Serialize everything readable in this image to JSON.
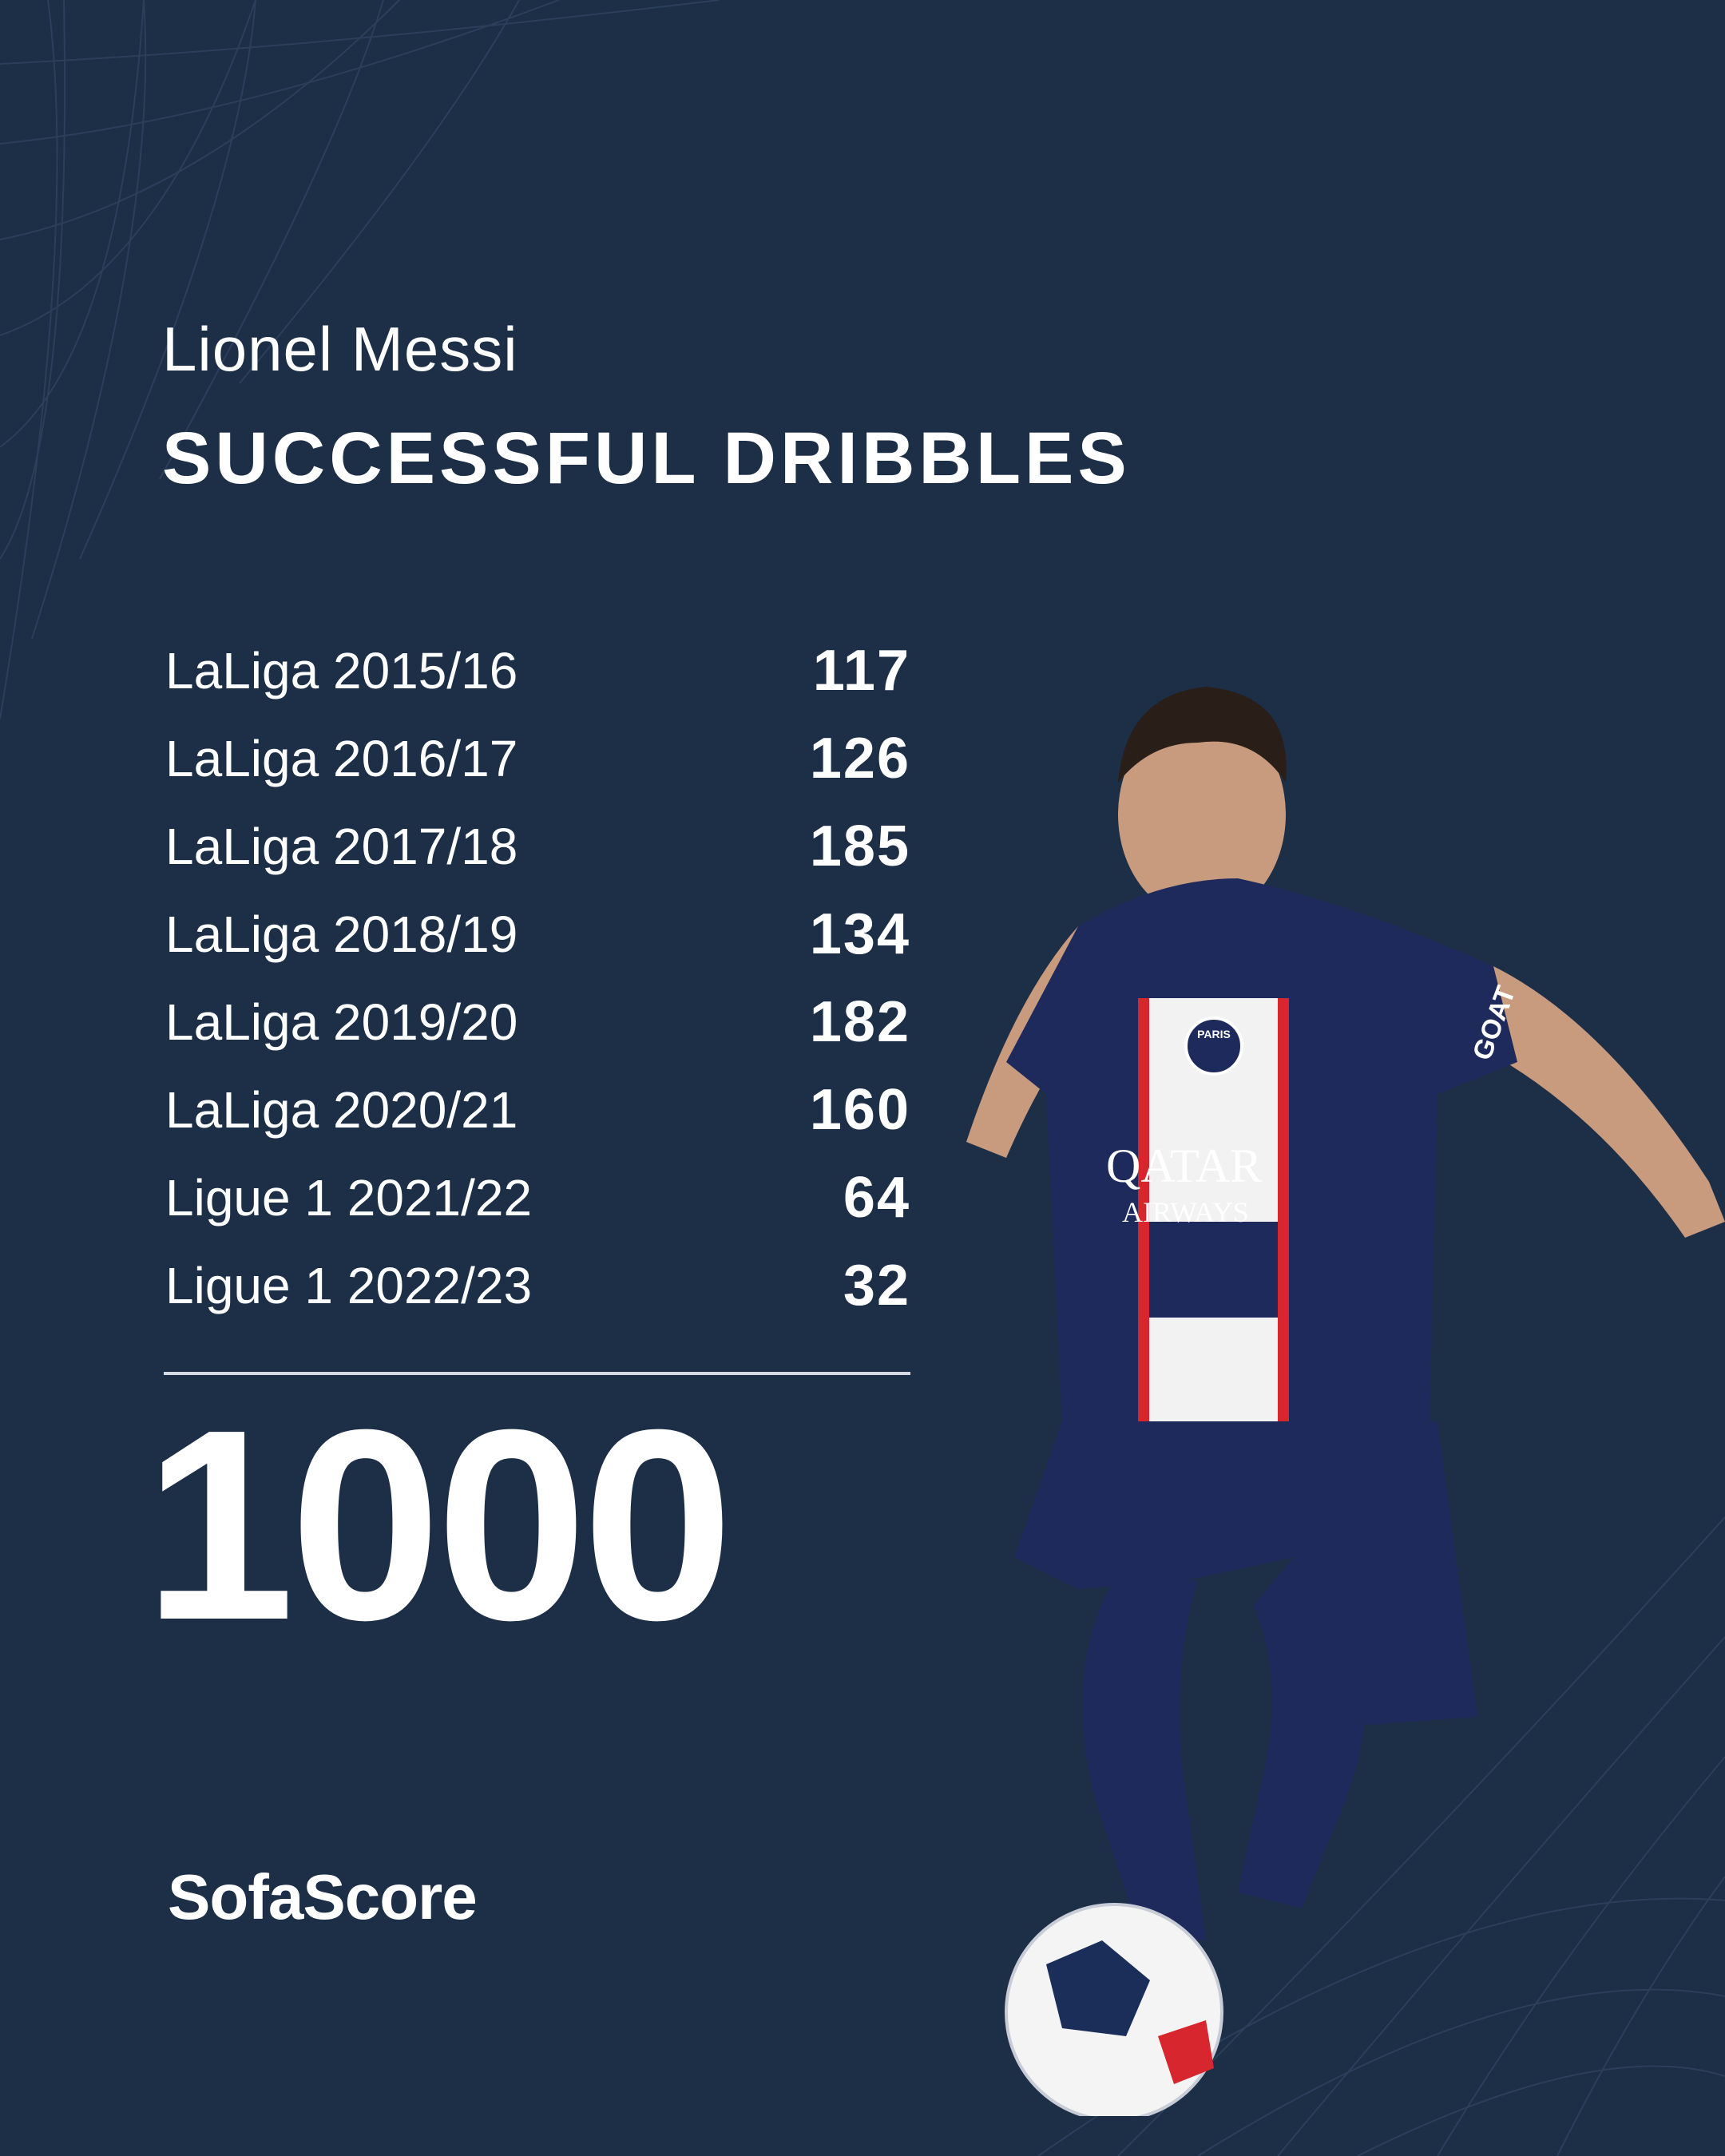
{
  "header": {
    "player_name": "Lionel Messi",
    "title": "SUCCESSFUL DRIBBLES"
  },
  "seasons": [
    {
      "label": "LaLiga 2015/16",
      "value": "117"
    },
    {
      "label": "LaLiga 2016/17",
      "value": "126"
    },
    {
      "label": "LaLiga 2017/18",
      "value": "185"
    },
    {
      "label": "LaLiga 2018/19",
      "value": "134"
    },
    {
      "label": "LaLiga 2019/20",
      "value": "182"
    },
    {
      "label": "LaLiga 2020/21",
      "value": "160"
    },
    {
      "label": "Ligue 1 2021/22",
      "value": "64"
    },
    {
      "label": "Ligue 1 2022/23",
      "value": "32"
    }
  ],
  "total": "1000",
  "brand": "SofaScore",
  "photo": {
    "shirt_sponsor": "QATAR AIRWAYS",
    "shirt_text": "GOAT",
    "club_badge": "PARIS"
  },
  "colors": {
    "background": "#1d2e47",
    "text": "#ffffff",
    "shirt": "#1f2a5c",
    "stripe_red": "#d8262e"
  }
}
